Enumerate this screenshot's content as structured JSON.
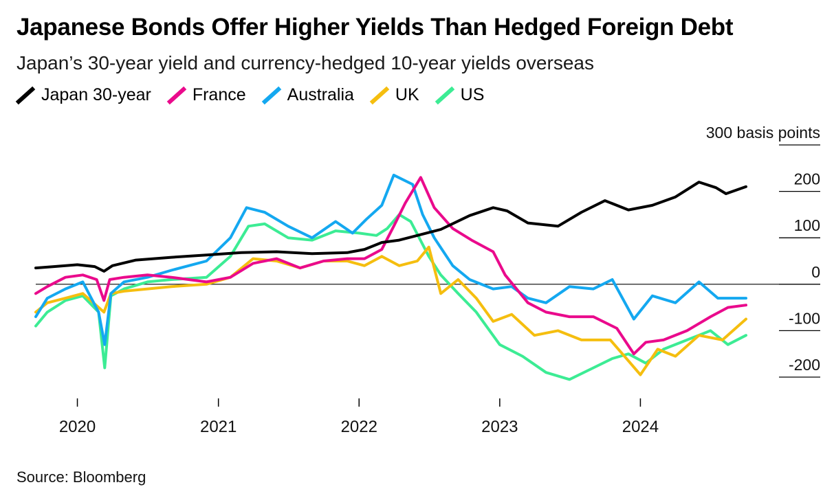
{
  "title": "Japanese Bonds Offer Higher Yields Than Hedged Foreign Debt",
  "subtitle": "Japan’s 30-year yield and currency-hedged 10-year yields overseas",
  "source": "Source: Bloomberg",
  "colors": {
    "japan": "#000000",
    "france": "#ea0a8c",
    "australia": "#14a8f0",
    "uk": "#f5be0f",
    "us": "#3cec94",
    "zero_line": "#000000",
    "gridline": "#000000"
  },
  "chart_data": {
    "type": "line",
    "ylabel": "basis points",
    "ylim": [
      -200,
      300
    ],
    "y_ticks": [
      {
        "value": 300,
        "label": "300 basis points"
      },
      {
        "value": 200,
        "label": "200"
      },
      {
        "value": 100,
        "label": "100"
      },
      {
        "value": 0,
        "label": "0"
      },
      {
        "value": -100,
        "label": "-100"
      },
      {
        "value": -200,
        "label": "-200"
      }
    ],
    "xlim": [
      "2019-09-15",
      "2024-10-01"
    ],
    "x_ticks": [
      {
        "value": "2020-01-01",
        "label": "2020"
      },
      {
        "value": "2021-01-01",
        "label": "2021"
      },
      {
        "value": "2022-01-01",
        "label": "2022"
      },
      {
        "value": "2023-01-01",
        "label": "2023"
      },
      {
        "value": "2024-01-01",
        "label": "2024"
      }
    ],
    "series": [
      {
        "name": "Japan 30-year",
        "key": "japan",
        "points": [
          [
            "2019-09-15",
            35
          ],
          [
            "2019-11-01",
            38
          ],
          [
            "2020-01-01",
            42
          ],
          [
            "2020-02-15",
            38
          ],
          [
            "2020-03-10",
            28
          ],
          [
            "2020-04-01",
            40
          ],
          [
            "2020-06-01",
            52
          ],
          [
            "2020-09-01",
            58
          ],
          [
            "2020-12-01",
            63
          ],
          [
            "2021-03-01",
            68
          ],
          [
            "2021-06-01",
            70
          ],
          [
            "2021-09-01",
            66
          ],
          [
            "2021-12-01",
            68
          ],
          [
            "2022-01-15",
            75
          ],
          [
            "2022-03-01",
            90
          ],
          [
            "2022-04-15",
            95
          ],
          [
            "2022-06-01",
            105
          ],
          [
            "2022-08-01",
            118
          ],
          [
            "2022-10-15",
            148
          ],
          [
            "2022-12-15",
            165
          ],
          [
            "2023-01-20",
            158
          ],
          [
            "2023-03-15",
            132
          ],
          [
            "2023-06-01",
            125
          ],
          [
            "2023-08-01",
            155
          ],
          [
            "2023-10-01",
            180
          ],
          [
            "2023-12-01",
            160
          ],
          [
            "2024-02-01",
            170
          ],
          [
            "2024-04-01",
            188
          ],
          [
            "2024-06-01",
            220
          ],
          [
            "2024-07-15",
            208
          ],
          [
            "2024-08-10",
            195
          ],
          [
            "2024-10-01",
            210
          ]
        ]
      },
      {
        "name": "France",
        "key": "france",
        "points": [
          [
            "2019-09-15",
            -20
          ],
          [
            "2019-10-15",
            -5
          ],
          [
            "2019-12-01",
            15
          ],
          [
            "2020-01-15",
            20
          ],
          [
            "2020-02-20",
            10
          ],
          [
            "2020-03-10",
            -35
          ],
          [
            "2020-03-25",
            10
          ],
          [
            "2020-05-01",
            15
          ],
          [
            "2020-07-01",
            20
          ],
          [
            "2020-09-01",
            15
          ],
          [
            "2020-12-01",
            5
          ],
          [
            "2021-02-01",
            15
          ],
          [
            "2021-04-01",
            45
          ],
          [
            "2021-06-01",
            55
          ],
          [
            "2021-08-01",
            35
          ],
          [
            "2021-10-01",
            50
          ],
          [
            "2021-12-01",
            55
          ],
          [
            "2022-01-15",
            55
          ],
          [
            "2022-03-01",
            75
          ],
          [
            "2022-04-01",
            125
          ],
          [
            "2022-05-01",
            175
          ],
          [
            "2022-06-10",
            230
          ],
          [
            "2022-07-15",
            165
          ],
          [
            "2022-09-01",
            120
          ],
          [
            "2022-10-20",
            95
          ],
          [
            "2022-12-15",
            70
          ],
          [
            "2023-01-15",
            20
          ],
          [
            "2023-03-15",
            -40
          ],
          [
            "2023-05-01",
            -60
          ],
          [
            "2023-07-01",
            -70
          ],
          [
            "2023-09-01",
            -70
          ],
          [
            "2023-11-01",
            -95
          ],
          [
            "2023-12-15",
            -150
          ],
          [
            "2024-01-15",
            -125
          ],
          [
            "2024-03-01",
            -120
          ],
          [
            "2024-05-01",
            -100
          ],
          [
            "2024-07-01",
            -70
          ],
          [
            "2024-08-15",
            -50
          ],
          [
            "2024-10-01",
            -45
          ]
        ]
      },
      {
        "name": "Australia",
        "key": "australia",
        "points": [
          [
            "2019-09-15",
            -70
          ],
          [
            "2019-10-15",
            -30
          ],
          [
            "2019-12-01",
            -10
          ],
          [
            "2020-01-15",
            5
          ],
          [
            "2020-02-25",
            -60
          ],
          [
            "2020-03-12",
            -130
          ],
          [
            "2020-03-28",
            -20
          ],
          [
            "2020-05-01",
            5
          ],
          [
            "2020-07-01",
            15
          ],
          [
            "2020-09-01",
            30
          ],
          [
            "2020-12-01",
            50
          ],
          [
            "2021-02-01",
            100
          ],
          [
            "2021-03-15",
            165
          ],
          [
            "2021-05-01",
            155
          ],
          [
            "2021-07-01",
            125
          ],
          [
            "2021-09-01",
            100
          ],
          [
            "2021-11-01",
            135
          ],
          [
            "2021-12-15",
            110
          ],
          [
            "2022-01-20",
            140
          ],
          [
            "2022-03-01",
            170
          ],
          [
            "2022-04-01",
            235
          ],
          [
            "2022-05-20",
            215
          ],
          [
            "2022-06-15",
            150
          ],
          [
            "2022-07-15",
            100
          ],
          [
            "2022-09-01",
            40
          ],
          [
            "2022-10-15",
            10
          ],
          [
            "2022-12-15",
            -10
          ],
          [
            "2023-02-01",
            -5
          ],
          [
            "2023-03-15",
            -30
          ],
          [
            "2023-05-01",
            -40
          ],
          [
            "2023-07-01",
            -5
          ],
          [
            "2023-09-01",
            -10
          ],
          [
            "2023-10-20",
            10
          ],
          [
            "2023-12-15",
            -75
          ],
          [
            "2024-02-01",
            -25
          ],
          [
            "2024-04-01",
            -40
          ],
          [
            "2024-06-01",
            5
          ],
          [
            "2024-07-20",
            -30
          ],
          [
            "2024-10-01",
            -30
          ]
        ]
      },
      {
        "name": "UK",
        "key": "uk",
        "points": [
          [
            "2019-09-15",
            -60
          ],
          [
            "2019-10-15",
            -40
          ],
          [
            "2019-12-01",
            -30
          ],
          [
            "2020-01-15",
            -20
          ],
          [
            "2020-03-10",
            -60
          ],
          [
            "2020-03-28",
            -20
          ],
          [
            "2020-05-01",
            -15
          ],
          [
            "2020-07-01",
            -10
          ],
          [
            "2020-09-01",
            -5
          ],
          [
            "2020-12-01",
            0
          ],
          [
            "2021-02-01",
            15
          ],
          [
            "2021-04-01",
            55
          ],
          [
            "2021-06-01",
            50
          ],
          [
            "2021-08-01",
            35
          ],
          [
            "2021-10-01",
            50
          ],
          [
            "2021-12-01",
            50
          ],
          [
            "2022-01-15",
            40
          ],
          [
            "2022-03-01",
            60
          ],
          [
            "2022-04-15",
            40
          ],
          [
            "2022-06-01",
            50
          ],
          [
            "2022-07-01",
            80
          ],
          [
            "2022-08-01",
            -20
          ],
          [
            "2022-09-15",
            10
          ],
          [
            "2022-11-01",
            -30
          ],
          [
            "2022-12-15",
            -80
          ],
          [
            "2023-02-01",
            -65
          ],
          [
            "2023-04-01",
            -110
          ],
          [
            "2023-06-01",
            -100
          ],
          [
            "2023-08-01",
            -120
          ],
          [
            "2023-10-15",
            -120
          ],
          [
            "2023-12-01",
            -165
          ],
          [
            "2024-01-01",
            -195
          ],
          [
            "2024-02-15",
            -140
          ],
          [
            "2024-04-01",
            -155
          ],
          [
            "2024-06-01",
            -110
          ],
          [
            "2024-08-01",
            -120
          ],
          [
            "2024-10-01",
            -75
          ]
        ]
      },
      {
        "name": "US",
        "key": "us",
        "points": [
          [
            "2019-09-15",
            -90
          ],
          [
            "2019-10-15",
            -60
          ],
          [
            "2019-12-01",
            -35
          ],
          [
            "2020-01-15",
            -25
          ],
          [
            "2020-02-25",
            -60
          ],
          [
            "2020-03-12",
            -180
          ],
          [
            "2020-03-28",
            -25
          ],
          [
            "2020-05-01",
            -10
          ],
          [
            "2020-07-01",
            5
          ],
          [
            "2020-09-01",
            10
          ],
          [
            "2020-12-01",
            15
          ],
          [
            "2021-02-01",
            60
          ],
          [
            "2021-03-20",
            125
          ],
          [
            "2021-05-01",
            130
          ],
          [
            "2021-07-01",
            100
          ],
          [
            "2021-09-01",
            95
          ],
          [
            "2021-11-01",
            115
          ],
          [
            "2022-01-01",
            110
          ],
          [
            "2022-02-15",
            105
          ],
          [
            "2022-03-15",
            120
          ],
          [
            "2022-04-15",
            150
          ],
          [
            "2022-05-15",
            135
          ],
          [
            "2022-07-01",
            60
          ],
          [
            "2022-08-01",
            20
          ],
          [
            "2022-09-15",
            -20
          ],
          [
            "2022-11-01",
            -60
          ],
          [
            "2023-01-01",
            -130
          ],
          [
            "2023-03-01",
            -155
          ],
          [
            "2023-05-01",
            -190
          ],
          [
            "2023-07-01",
            -205
          ],
          [
            "2023-09-01",
            -180
          ],
          [
            "2023-10-20",
            -160
          ],
          [
            "2023-12-01",
            -150
          ],
          [
            "2024-01-15",
            -170
          ],
          [
            "2024-03-01",
            -140
          ],
          [
            "2024-05-01",
            -120
          ],
          [
            "2024-07-01",
            -100
          ],
          [
            "2024-08-15",
            -130
          ],
          [
            "2024-10-01",
            -110
          ]
        ]
      }
    ]
  }
}
